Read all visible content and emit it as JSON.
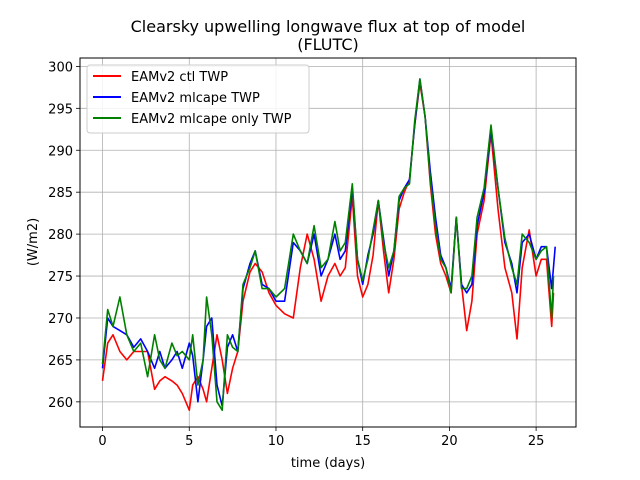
{
  "chart_data": {
    "type": "line",
    "title": "Clearsky upwelling longwave flux at top of model",
    "subtitle": "(FLUTC)",
    "xlabel": "time (days)",
    "ylabel": "(W/m2)",
    "xlim": [
      -1.3,
      27.3
    ],
    "ylim": [
      257,
      301
    ],
    "xticks": [
      0,
      5,
      10,
      15,
      20,
      25
    ],
    "yticks": [
      260,
      265,
      270,
      275,
      280,
      285,
      290,
      295,
      300
    ],
    "grid": true,
    "legend_position": "top-left",
    "series": [
      {
        "name": "EAMv2 ctl TWP",
        "color": "#ff0000",
        "x": [
          0,
          0.3,
          0.6,
          1,
          1.4,
          1.8,
          2.2,
          2.6,
          3,
          3.3,
          3.6,
          4,
          4.3,
          4.6,
          5,
          5.2,
          5.5,
          5.8,
          6,
          6.3,
          6.6,
          6.9,
          7.2,
          7.5,
          7.8,
          8.1,
          8.5,
          8.8,
          9.2,
          9.6,
          10,
          10.5,
          11,
          11.4,
          11.8,
          12.2,
          12.6,
          13,
          13.4,
          13.7,
          14,
          14.4,
          14.7,
          15,
          15.3,
          15.6,
          15.9,
          16.2,
          16.5,
          16.8,
          17.1,
          17.4,
          17.7,
          18,
          18.3,
          18.6,
          18.9,
          19.2,
          19.5,
          19.8,
          20.1,
          20.4,
          20.7,
          21,
          21.3,
          21.6,
          22,
          22.4,
          22.8,
          23.2,
          23.6,
          23.9,
          24.2,
          24.6,
          25,
          25.3,
          25.6,
          25.9,
          26
        ],
        "values": [
          262.5,
          267,
          268,
          266,
          265,
          266,
          266,
          266,
          261.5,
          262.5,
          263,
          262.5,
          262,
          261,
          259,
          262,
          263,
          261.5,
          260,
          264,
          268,
          265,
          261,
          264,
          266,
          272,
          275.5,
          276.5,
          275.5,
          273,
          271.5,
          270.5,
          270,
          276,
          280,
          277,
          272,
          275,
          276.5,
          275,
          276,
          284.5,
          275,
          272.5,
          274,
          277.5,
          284,
          278,
          273,
          277,
          283,
          285,
          286.5,
          293,
          298,
          294,
          286,
          280,
          276.5,
          275,
          273,
          282,
          274,
          268.5,
          272,
          280,
          284,
          292,
          283,
          276,
          273,
          267.5,
          276,
          280.5,
          275,
          277,
          277,
          269,
          273
        ]
      },
      {
        "name": "EAMv2 mlcape TWP",
        "color": "#0000ff",
        "x": [
          0,
          0.3,
          0.6,
          1,
          1.4,
          1.8,
          2.2,
          2.6,
          3,
          3.3,
          3.6,
          4,
          4.3,
          4.6,
          5,
          5.2,
          5.5,
          5.8,
          6,
          6.3,
          6.6,
          6.9,
          7.2,
          7.5,
          7.8,
          8.1,
          8.5,
          8.8,
          9.2,
          9.6,
          10,
          10.5,
          11,
          11.4,
          11.8,
          12.2,
          12.6,
          13,
          13.4,
          13.7,
          14,
          14.4,
          14.7,
          15,
          15.3,
          15.6,
          15.9,
          16.2,
          16.5,
          16.8,
          17.1,
          17.4,
          17.7,
          18,
          18.3,
          18.6,
          18.9,
          19.2,
          19.5,
          19.8,
          20.1,
          20.4,
          20.7,
          21,
          21.3,
          21.6,
          22,
          22.4,
          22.8,
          23.2,
          23.6,
          23.9,
          24.2,
          24.6,
          25,
          25.3,
          25.6,
          25.9,
          26.1
        ],
        "values": [
          264,
          270,
          269,
          268.5,
          268,
          266.5,
          267.5,
          266,
          264,
          266,
          264,
          265,
          266,
          264,
          267,
          265.5,
          260,
          265,
          269,
          270,
          262,
          259.5,
          266.5,
          268,
          266,
          273.5,
          276.5,
          278,
          274,
          273.5,
          272,
          272,
          279,
          278,
          276.5,
          280,
          275,
          277,
          280,
          277,
          278,
          285.5,
          277,
          274,
          277.5,
          280,
          284,
          279.5,
          275,
          278,
          284,
          285.5,
          286.5,
          293,
          298.5,
          294,
          287.5,
          282,
          277.5,
          276,
          273.5,
          282,
          274,
          273,
          274,
          281,
          285,
          292.5,
          285.5,
          279,
          276.5,
          273,
          279,
          280,
          277,
          278.5,
          278.5,
          273.5,
          278.5
        ]
      },
      {
        "name": "EAMv2 mlcape only TWP",
        "color": "#008000",
        "x": [
          0,
          0.3,
          0.6,
          1,
          1.4,
          1.8,
          2.2,
          2.6,
          3,
          3.3,
          3.6,
          4,
          4.3,
          4.6,
          5,
          5.2,
          5.5,
          5.8,
          6,
          6.3,
          6.6,
          6.9,
          7.2,
          7.5,
          7.8,
          8.1,
          8.5,
          8.8,
          9.2,
          9.6,
          10,
          10.5,
          11,
          11.4,
          11.8,
          12.2,
          12.6,
          13,
          13.4,
          13.7,
          14,
          14.4,
          14.7,
          15,
          15.3,
          15.6,
          15.9,
          16.2,
          16.5,
          16.8,
          17.1,
          17.4,
          17.7,
          18,
          18.3,
          18.6,
          18.9,
          19.2,
          19.5,
          19.8,
          20.1,
          20.4,
          20.7,
          21,
          21.3,
          21.6,
          22,
          22.4,
          22.8,
          23.2,
          23.6,
          23.9,
          24.2,
          24.6,
          25,
          25.3,
          25.6,
          25.9,
          26
        ],
        "values": [
          264.5,
          271,
          269,
          272.5,
          268,
          266,
          267,
          263,
          268,
          265,
          264,
          267,
          265.5,
          266,
          265,
          268,
          262,
          265,
          272.5,
          268,
          260,
          259,
          268,
          266.5,
          266,
          274,
          276,
          278,
          273.5,
          273.5,
          272.5,
          273.5,
          280,
          278,
          276.5,
          281,
          276,
          277,
          281.5,
          278,
          279,
          286,
          277,
          274.5,
          277,
          280.5,
          284,
          279,
          276,
          278,
          284.5,
          285.5,
          286,
          293.5,
          298.5,
          294,
          286.5,
          281,
          277,
          276,
          273,
          282,
          273.5,
          273.5,
          275,
          282,
          285.5,
          293,
          285.5,
          279.5,
          276,
          274,
          280,
          279,
          277,
          278,
          278.5,
          270,
          275
        ]
      }
    ]
  }
}
